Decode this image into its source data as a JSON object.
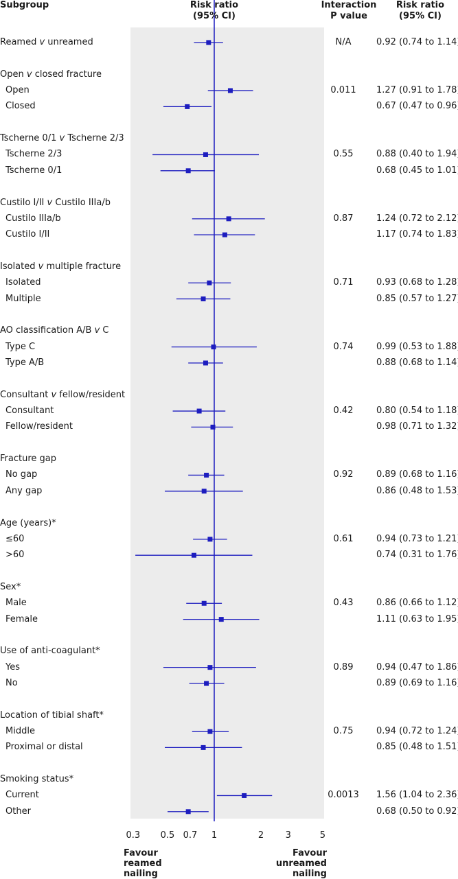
{
  "header": {
    "subgroup": "Subgroup",
    "risk_ratio_line1": "Risk ratio",
    "risk_ratio_line2": "(95% CI)",
    "interaction_line1": "Interaction",
    "interaction_line2": "P value",
    "rr2_line1": "Risk ratio",
    "rr2_line2": "(95% CI)"
  },
  "footer": {
    "favour_left_1": "Favour",
    "favour_left_2": "reamed",
    "favour_left_3": "nailing",
    "favour_right_1": "Favour",
    "favour_right_2": "unreamed",
    "favour_right_3": "nailing"
  },
  "chart_data": {
    "type": "forest",
    "x_scale": "log",
    "xlim": [
      0.3,
      5
    ],
    "x_ticks": [
      0.3,
      0.5,
      0.7,
      1,
      2,
      3,
      5
    ],
    "x_tick_labels": [
      "0.3",
      "0.5",
      "0.7",
      "1",
      "2",
      "3",
      "5"
    ],
    "reference_line": 1,
    "rows": [
      {
        "kind": "est",
        "label": "Reamed ",
        "label_italic": "v",
        "label_rest": " unreamed",
        "rr": 0.92,
        "lo": 0.74,
        "hi": 1.14,
        "p": "N/A",
        "ci": "0.92 (0.74 to 1.14)"
      },
      {
        "kind": "group",
        "label": "Open ",
        "label_italic": "v",
        "label_rest": " closed fracture"
      },
      {
        "kind": "est",
        "label": "Open",
        "rr": 1.27,
        "lo": 0.91,
        "hi": 1.78,
        "p": "0.011",
        "ci": "1.27 (0.91 to 1.78)"
      },
      {
        "kind": "est",
        "label": "Closed",
        "rr": 0.67,
        "lo": 0.47,
        "hi": 0.96,
        "p": "",
        "ci": "0.67 (0.47 to 0.96)"
      },
      {
        "kind": "group",
        "label": "Tscherne 0/1 ",
        "label_italic": "v",
        "label_rest": " Tscherne 2/3"
      },
      {
        "kind": "est",
        "label": "Tscherne 2/3",
        "rr": 0.88,
        "lo": 0.4,
        "hi": 1.94,
        "p": "0.55",
        "ci": "0.88 (0.40 to 1.94)"
      },
      {
        "kind": "est",
        "label": "Tscherne 0/1",
        "rr": 0.68,
        "lo": 0.45,
        "hi": 1.01,
        "p": "",
        "ci": "0.68 (0.45 to 1.01)"
      },
      {
        "kind": "group",
        "label": "Custilo I/II ",
        "label_italic": "v",
        "label_rest": " Custilo IIIa/b"
      },
      {
        "kind": "est",
        "label": "Custilo IIIa/b",
        "rr": 1.24,
        "lo": 0.72,
        "hi": 2.12,
        "p": "0.87",
        "ci": "1.24 (0.72 to 2.12)"
      },
      {
        "kind": "est",
        "label": "Custilo I/II",
        "rr": 1.17,
        "lo": 0.74,
        "hi": 1.83,
        "p": "",
        "ci": "1.17 (0.74 to 1.83)"
      },
      {
        "kind": "group",
        "label": "Isolated ",
        "label_italic": "v",
        "label_rest": " multiple fracture"
      },
      {
        "kind": "est",
        "label": "Isolated",
        "rr": 0.93,
        "lo": 0.68,
        "hi": 1.28,
        "p": "0.71",
        "ci": "0.93 (0.68 to 1.28)"
      },
      {
        "kind": "est",
        "label": "Multiple",
        "rr": 0.85,
        "lo": 0.57,
        "hi": 1.27,
        "p": "",
        "ci": "0.85 (0.57 to 1.27)"
      },
      {
        "kind": "group",
        "label": "AO classification A/B ",
        "label_italic": "v",
        "label_rest": " C"
      },
      {
        "kind": "est",
        "label": "Type C",
        "rr": 0.99,
        "lo": 0.53,
        "hi": 1.88,
        "p": "0.74",
        "ci": "0.99 (0.53 to 1.88)"
      },
      {
        "kind": "est",
        "label": "Type A/B",
        "rr": 0.88,
        "lo": 0.68,
        "hi": 1.14,
        "p": "",
        "ci": "0.88 (0.68 to 1.14)"
      },
      {
        "kind": "group",
        "label": "Consultant ",
        "label_italic": "v",
        "label_rest": " fellow/resident"
      },
      {
        "kind": "est",
        "label": "Consultant",
        "rr": 0.8,
        "lo": 0.54,
        "hi": 1.18,
        "p": "0.42",
        "ci": "0.80 (0.54 to 1.18)"
      },
      {
        "kind": "est",
        "label": "Fellow/resident",
        "rr": 0.98,
        "lo": 0.71,
        "hi": 1.32,
        "p": "",
        "ci": "0.98 (0.71 to 1.32)"
      },
      {
        "kind": "group",
        "label": "Fracture gap"
      },
      {
        "kind": "est",
        "label": "No gap",
        "rr": 0.89,
        "lo": 0.68,
        "hi": 1.16,
        "p": "0.92",
        "ci": "0.89 (0.68 to 1.16)"
      },
      {
        "kind": "est",
        "label": "Any gap",
        "rr": 0.86,
        "lo": 0.48,
        "hi": 1.53,
        "p": "",
        "ci": "0.86 (0.48 to 1.53)"
      },
      {
        "kind": "group",
        "label": "Age (years)*"
      },
      {
        "kind": "est",
        "label": "≤60",
        "rr": 0.94,
        "lo": 0.73,
        "hi": 1.21,
        "p": "0.61",
        "ci": "0.94 (0.73 to 1.21)"
      },
      {
        "kind": "est",
        "label": ">60",
        "rr": 0.74,
        "lo": 0.31,
        "hi": 1.76,
        "p": "",
        "ci": "0.74 (0.31 to 1.76)"
      },
      {
        "kind": "group",
        "label": "Sex*"
      },
      {
        "kind": "est",
        "label": "Male",
        "rr": 0.86,
        "lo": 0.66,
        "hi": 1.12,
        "p": "0.43",
        "ci": "0.86 (0.66 to 1.12)"
      },
      {
        "kind": "est",
        "label": "Female",
        "rr": 1.11,
        "lo": 0.63,
        "hi": 1.95,
        "p": "",
        "ci": "1.11 (0.63 to 1.95)"
      },
      {
        "kind": "group",
        "label": "Use of anti-coagulant*"
      },
      {
        "kind": "est",
        "label": "Yes",
        "rr": 0.94,
        "lo": 0.47,
        "hi": 1.86,
        "p": "0.89",
        "ci": "0.94 (0.47 to 1.86)"
      },
      {
        "kind": "est",
        "label": "No",
        "rr": 0.89,
        "lo": 0.69,
        "hi": 1.16,
        "p": "",
        "ci": "0.89 (0.69 to 1.16)"
      },
      {
        "kind": "group",
        "label": "Location of tibial shaft*"
      },
      {
        "kind": "est",
        "label": "Middle",
        "rr": 0.94,
        "lo": 0.72,
        "hi": 1.24,
        "p": "0.75",
        "ci": "0.94 (0.72 to 1.24)"
      },
      {
        "kind": "est",
        "label": "Proximal or distal",
        "rr": 0.85,
        "lo": 0.48,
        "hi": 1.51,
        "p": "",
        "ci": "0.85 (0.48 to 1.51)"
      },
      {
        "kind": "group",
        "label": "Smoking status*"
      },
      {
        "kind": "est",
        "label": "Current",
        "rr": 1.56,
        "lo": 1.04,
        "hi": 2.36,
        "p": "0.0013",
        "ci": "1.56 (1.04 to 2.36)"
      },
      {
        "kind": "est",
        "label": "Other",
        "rr": 0.68,
        "lo": 0.5,
        "hi": 0.92,
        "p": "",
        "ci": "0.68 (0.50 to 0.92)"
      }
    ]
  },
  "colors": {
    "accent": "#1d1dbf",
    "panel": "#ececec",
    "text": "#1a1a1a"
  }
}
